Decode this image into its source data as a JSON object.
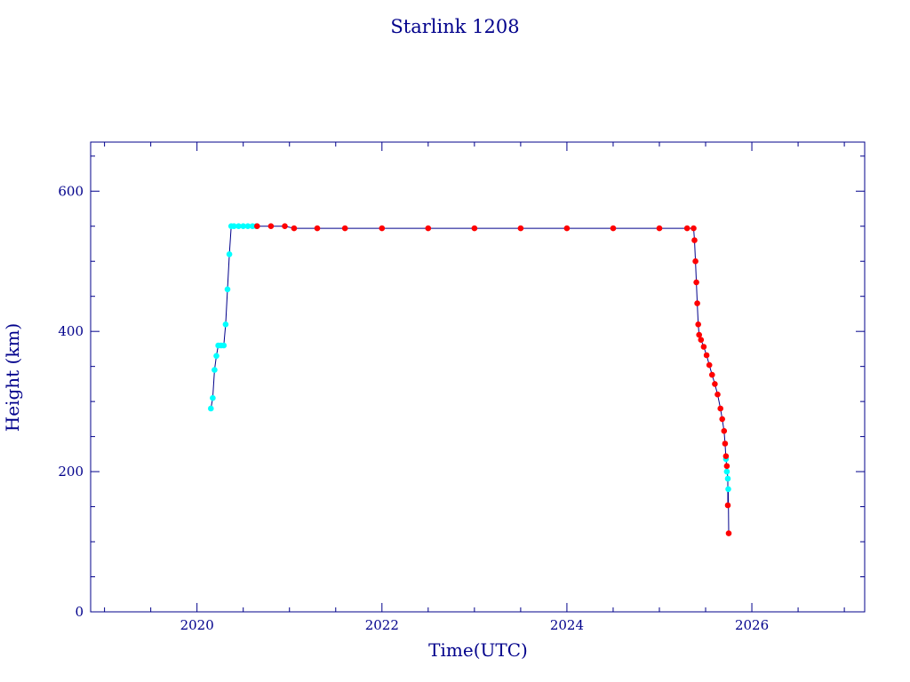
{
  "chart_data": {
    "type": "scatter",
    "title": "Starlink 1208",
    "xlabel": "Time(UTC)",
    "ylabel": "Height (km)",
    "xlim": [
      2018.85,
      2027.22
    ],
    "ylim": [
      0,
      670
    ],
    "x_ticks": [
      2020,
      2022,
      2024,
      2026
    ],
    "y_ticks": [
      0,
      200,
      400,
      600
    ],
    "grid": false,
    "colors": {
      "axis": "#00008b",
      "line": "#00008b",
      "cyan": "#00ffff",
      "red": "#ff0000"
    },
    "series": [
      {
        "color": "cyan",
        "points": [
          [
            2020.15,
            290
          ],
          [
            2020.17,
            305
          ],
          [
            2020.19,
            345
          ],
          [
            2020.21,
            365
          ],
          [
            2020.23,
            380
          ],
          [
            2020.26,
            380
          ],
          [
            2020.29,
            380
          ],
          [
            2020.31,
            410
          ],
          [
            2020.33,
            460
          ],
          [
            2020.35,
            510
          ],
          [
            2020.37,
            550
          ],
          [
            2020.4,
            550
          ],
          [
            2020.45,
            550
          ],
          [
            2020.5,
            550
          ],
          [
            2020.55,
            550
          ],
          [
            2020.6,
            550
          ],
          [
            2020.64,
            550
          ],
          [
            2025.72,
            218
          ],
          [
            2025.73,
            200
          ],
          [
            2025.74,
            190
          ],
          [
            2025.745,
            175
          ]
        ]
      },
      {
        "color": "red",
        "points": [
          [
            2020.65,
            550
          ],
          [
            2020.8,
            550
          ],
          [
            2020.95,
            550
          ],
          [
            2021.05,
            547
          ],
          [
            2021.3,
            547
          ],
          [
            2021.6,
            547
          ],
          [
            2022.0,
            547
          ],
          [
            2022.5,
            547
          ],
          [
            2023.0,
            547
          ],
          [
            2023.5,
            547
          ],
          [
            2024.0,
            547
          ],
          [
            2024.5,
            547
          ],
          [
            2025.0,
            547
          ],
          [
            2025.3,
            547
          ],
          [
            2025.37,
            547
          ],
          [
            2025.38,
            530
          ],
          [
            2025.39,
            500
          ],
          [
            2025.4,
            470
          ],
          [
            2025.41,
            440
          ],
          [
            2025.42,
            410
          ],
          [
            2025.43,
            395
          ],
          [
            2025.45,
            388
          ],
          [
            2025.48,
            378
          ],
          [
            2025.51,
            366
          ],
          [
            2025.54,
            352
          ],
          [
            2025.57,
            338
          ],
          [
            2025.6,
            325
          ],
          [
            2025.63,
            310
          ],
          [
            2025.66,
            290
          ],
          [
            2025.68,
            275
          ],
          [
            2025.7,
            258
          ],
          [
            2025.71,
            240
          ],
          [
            2025.72,
            222
          ],
          [
            2025.73,
            208
          ],
          [
            2025.74,
            152
          ],
          [
            2025.75,
            112
          ]
        ]
      }
    ]
  }
}
